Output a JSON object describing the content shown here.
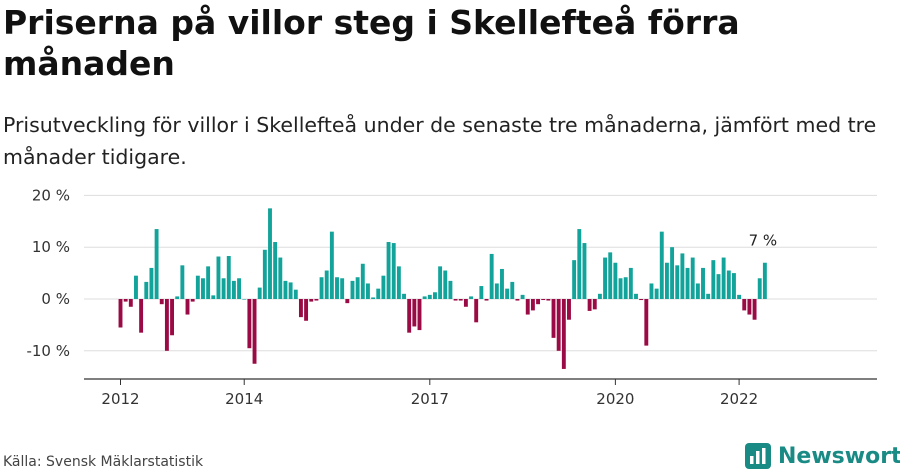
{
  "title": "Priserna på villor steg i Skellefteå förra månaden",
  "subtitle": "Prisutveckling för villor i Skellefteå under de senaste tre månaderna, jämfört med tre månader tidigare.",
  "source": "Källa: Svensk Mäklarstatistik",
  "brand": {
    "name": "Newsworthy",
    "icon": "newsworthy-logo-icon"
  },
  "colors": {
    "positive": "#12a39a",
    "negative": "#9a0a44",
    "grid": "#dddddd",
    "axis": "#333333",
    "brand": "#1a8a84"
  },
  "chart_data": {
    "type": "bar",
    "title": "Priserna på villor steg i Skellefteå förra månaden",
    "xlabel": "",
    "ylabel": "",
    "ylim": [
      -15,
      20
    ],
    "y_ticks": [
      20,
      10,
      0,
      -10
    ],
    "y_tick_labels": [
      "20 %",
      "10 %",
      "0 %",
      "-10 %"
    ],
    "x_ticks": [
      {
        "label": "2012",
        "month_index": 0
      },
      {
        "label": "2014",
        "month_index": 24
      },
      {
        "label": "2017",
        "month_index": 60
      },
      {
        "label": "2020",
        "month_index": 96
      },
      {
        "label": "2022",
        "month_index": 120
      }
    ],
    "start_month_index": 0,
    "start_month": "2012-01",
    "annotation": {
      "text": "7 %",
      "target": "last"
    },
    "values": [
      -5.5,
      -0.5,
      -1.5,
      4.5,
      -6.5,
      3.3,
      6.0,
      13.5,
      -1.0,
      -10.0,
      -7.0,
      0.5,
      6.5,
      -3.0,
      -0.5,
      4.5,
      4.0,
      6.3,
      0.7,
      8.2,
      4.0,
      8.3,
      3.5,
      4.0,
      0,
      -9.5,
      -12.5,
      2.2,
      9.5,
      17.5,
      11.0,
      8.0,
      3.5,
      3.2,
      1.8,
      -3.5,
      -4.2,
      -0.5,
      -0.3,
      4.2,
      5.5,
      13.0,
      4.2,
      4.0,
      -0.8,
      3.5,
      4.2,
      6.8,
      3.0,
      0.3,
      2.0,
      4.5,
      11.0,
      10.8,
      6.3,
      1.0,
      -6.5,
      -5.3,
      -6.0,
      0.5,
      0.8,
      1.3,
      6.3,
      5.5,
      3.5,
      -0.3,
      -0.3,
      -1.5,
      0.5,
      -4.5,
      2.5,
      -0.3,
      8.7,
      3.0,
      5.8,
      2.0,
      3.3,
      -0.3,
      0.8,
      -3.0,
      -2.2,
      -1.0,
      -0.2,
      -0.3,
      -7.5,
      -10.0,
      -13.5,
      -4.0,
      7.5,
      13.5,
      10.8,
      -2.3,
      -2.0,
      1.0,
      8.0,
      9.0,
      7.0,
      4.0,
      4.2,
      6.0,
      1.0,
      -0.2,
      -9.0,
      3.0,
      2.0,
      13.0,
      7.0,
      10.0,
      6.5,
      8.8,
      6.0,
      8.0,
      3.0,
      6.0,
      1.0,
      7.5,
      4.8,
      8.0,
      5.5,
      5.0,
      0.8,
      -2.2,
      -3.0,
      -4.0,
      4.0,
      7.0
    ]
  }
}
